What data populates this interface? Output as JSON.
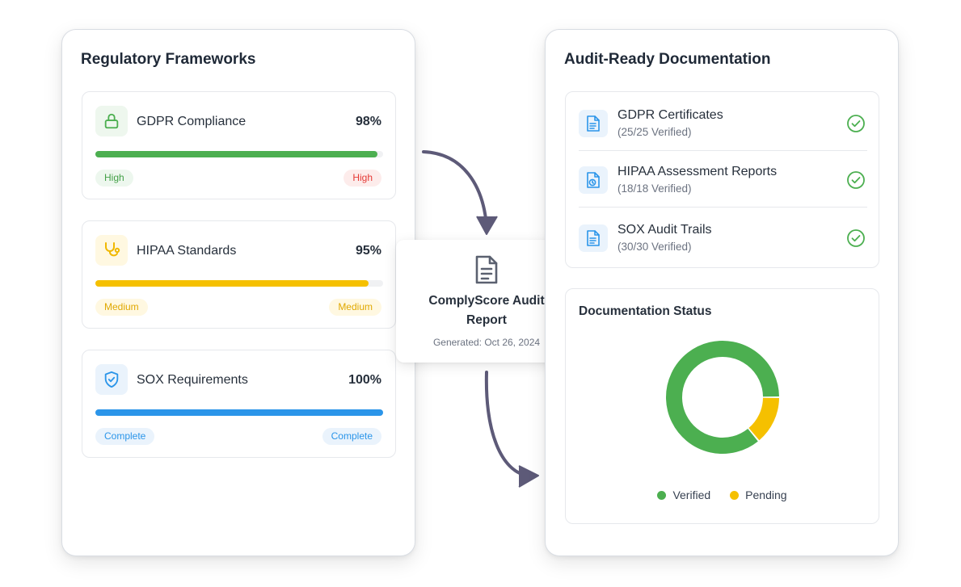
{
  "left": {
    "title": "Regulatory Frameworks",
    "frameworks": [
      {
        "name": "GDPR Compliance",
        "percent": "98%",
        "progress": 0.98,
        "left_tag": "High",
        "right_tag": "High",
        "icon": "lock-icon",
        "bar_color": "#4caf50"
      },
      {
        "name": "HIPAA Standards",
        "percent": "95%",
        "progress": 0.95,
        "left_tag": "Medium",
        "right_tag": "Medium",
        "icon": "stethoscope-icon",
        "bar_color": "#f5c000"
      },
      {
        "name": "SOX Requirements",
        "percent": "100%",
        "progress": 1.0,
        "left_tag": "Complete",
        "right_tag": "Complete",
        "icon": "shield-check-icon",
        "bar_color": "#2b95e9"
      }
    ]
  },
  "report": {
    "title_line1": "ComplyScore Audit",
    "title_line2": "Report",
    "generated": "Generated: Oct 26, 2024",
    "icon": "document-icon"
  },
  "right": {
    "title": "Audit-Ready Documentation",
    "docs": [
      {
        "name": "GDPR Certificates",
        "sub": "(25/25 Verified)",
        "icon": "file-text-icon"
      },
      {
        "name": "HIPAA Assessment Reports",
        "sub": "(18/18 Verified)",
        "icon": "file-clock-icon"
      },
      {
        "name": "SOX Audit Trails",
        "sub": "(30/30 Verified)",
        "icon": "file-text-icon"
      }
    ],
    "status": {
      "title": "Documentation Status",
      "legend_verified": "Verified",
      "legend_pending": "Pending"
    }
  },
  "colors": {
    "verified": "#4caf50",
    "pending": "#f5c000",
    "complete": "#2b95e9",
    "high_red": "#e53935"
  },
  "chart_data": {
    "type": "pie",
    "title": "Documentation Status",
    "labels": [
      "Verified",
      "Pending"
    ],
    "values": [
      86,
      14
    ],
    "colors": [
      "#4caf50",
      "#f5c000"
    ]
  }
}
